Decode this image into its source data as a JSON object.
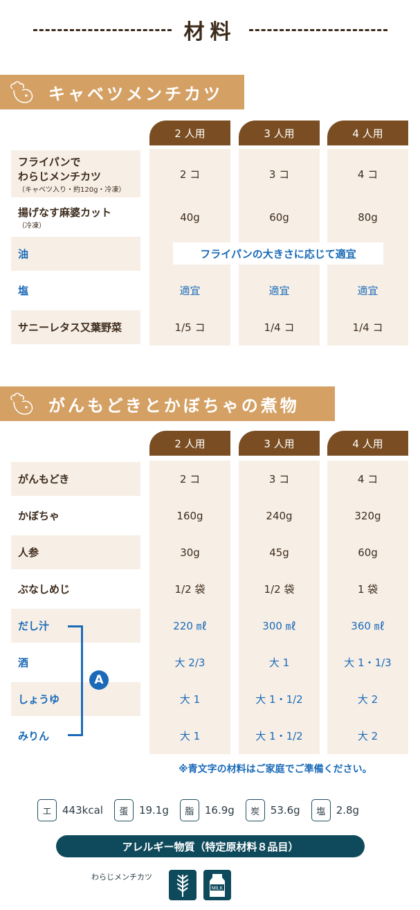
{
  "title": "材料",
  "servings": [
    "2 人用",
    "3 人用",
    "4 人用"
  ],
  "recipes": [
    {
      "name": "キャベツメンチカツ",
      "rows": [
        {
          "label": "フライパンで",
          "label2": "わらじメンチカツ",
          "sub": "（キャベツ入り・約120g・冷凍）",
          "values": [
            "2 コ",
            "3 コ",
            "4 コ"
          ],
          "blue": false
        },
        {
          "label": "揚げなす麻婆カット",
          "sub": "（冷凍）",
          "values": [
            "40g",
            "60g",
            "80g"
          ],
          "blue": false
        },
        {
          "label": "油",
          "span": "フライパンの大きさに応じて適宜",
          "values": [],
          "blue": true
        },
        {
          "label": "塩",
          "values": [
            "適宜",
            "適宜",
            "適宜"
          ],
          "blue": true
        },
        {
          "label": "サニーレタス又葉野菜",
          "values": [
            "1/5 コ",
            "1/4 コ",
            "1/4 コ"
          ],
          "blue": false
        }
      ]
    },
    {
      "name": "がんもどきとかぼちゃの煮物",
      "rows": [
        {
          "label": "がんもどき",
          "values": [
            "2 コ",
            "3 コ",
            "4 コ"
          ],
          "blue": false
        },
        {
          "label": "かぼちゃ",
          "values": [
            "160g",
            "240g",
            "320g"
          ],
          "blue": false
        },
        {
          "label": "人参",
          "values": [
            "30g",
            "45g",
            "60g"
          ],
          "blue": false
        },
        {
          "label": "ぶなしめじ",
          "values": [
            "1/2 袋",
            "1/2 袋",
            "1 袋"
          ],
          "blue": false
        },
        {
          "label": "だし汁",
          "values": [
            "220 ㎖",
            "300 ㎖",
            "360 ㎖"
          ],
          "blue": true
        },
        {
          "label": "酒",
          "values": [
            "大 2/3",
            "大 1",
            "大 1・1/3"
          ],
          "blue": true
        },
        {
          "label": "しょうゆ",
          "values": [
            "大 1",
            "大 1・1/2",
            "大 2"
          ],
          "blue": true
        },
        {
          "label": "みりん",
          "values": [
            "大 1",
            "大 1・1/2",
            "大 2"
          ],
          "blue": true
        }
      ]
    }
  ],
  "group_label": "A",
  "footnote": "※青文字の材料はご家庭でご準備ください。",
  "nutrition": [
    {
      "key": "エ",
      "value": "443kcal"
    },
    {
      "key": "蛋",
      "value": "19.1g"
    },
    {
      "key": "脂",
      "value": "16.9g"
    },
    {
      "key": "炭",
      "value": "53.6g"
    },
    {
      "key": "塩",
      "value": "2.8g"
    }
  ],
  "allergy": {
    "title": "アレルギー物質（特定原材料８品目）",
    "item": "わらじメンチカツ",
    "icons": [
      "wheat-icon",
      "milk-icon"
    ],
    "milk_text": "MILK"
  },
  "colors": {
    "brown": "#7a4e22",
    "tan": "#d4a064",
    "cell": "#f7efe6",
    "blue": "#1a6ab8",
    "navy": "#0f4a5c"
  }
}
